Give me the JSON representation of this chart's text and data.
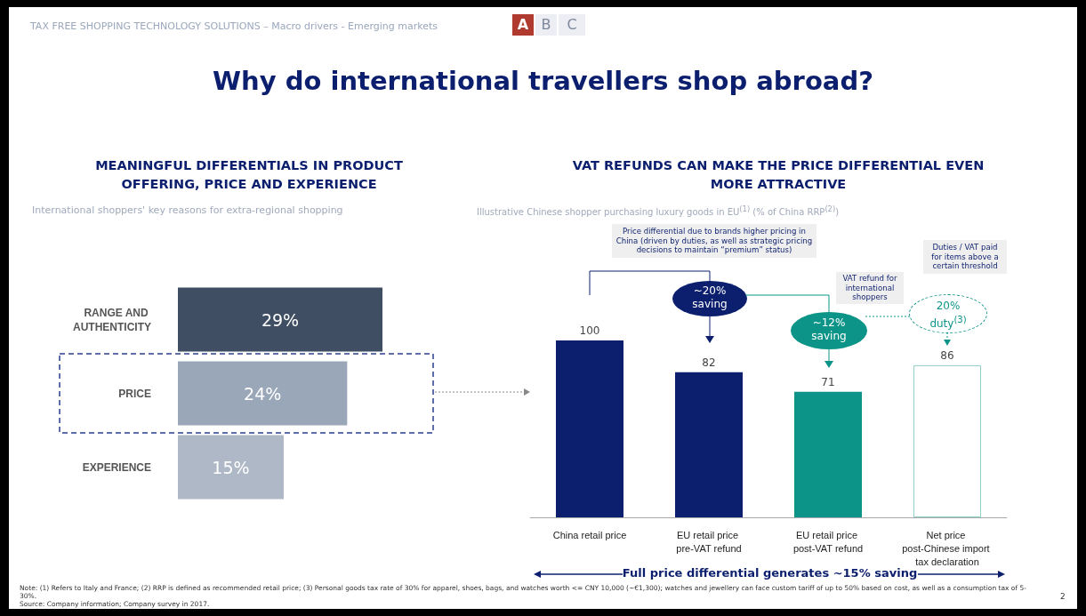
{
  "chart_data": [
    {
      "type": "bar",
      "orientation": "horizontal",
      "title": "MEANINGFUL DIFFERENTIALS IN PRODUCT OFFERING, PRICE AND EXPERIENCE",
      "subtitle": "International shoppers' key reasons for extra-regional shopping",
      "categories": [
        "RANGE AND AUTHENTICITY",
        "PRICE",
        "EXPERIENCE"
      ],
      "values": [
        29,
        24,
        15
      ],
      "colors": [
        "#3f4e63",
        "#9aa7b9",
        "#aeb8c7"
      ],
      "value_labels": [
        "29%",
        "24%",
        "15%"
      ],
      "annotations": [
        "TAX FREE SHOPPING TECHNOLOGY SOLUTIONS – Macro drivers - Emerging markets",
        "A",
        "B",
        "C",
        "Why do international travellers shop abroad?",
        "Note: (1) Refers to Italy and France; (2) RRP is defined as recommended retail price; (3) Personal goods tax rate of 30% for apparel, shoes, bags, and watches worth <= CNY 10,000 (~€1,300); watches and jewellery can face custom tariff of up to 50% based on cost, as well as a consumption tax of 5-30%.",
        "Source: Company information; Company survey in 2017.",
        "2"
      ]
    },
    {
      "type": "bar",
      "title": "VAT REFUNDS CAN MAKE THE PRICE DIFFERENTIAL EVEN MORE ATTRACTIVE",
      "subtitle": "Illustrative Chinese shopper purchasing luxury goods in EU$^{(1)}$ (% of China RRP$^{(2)}$)",
      "categories": [
        "China retail price",
        "EU retail price pre-VAT refund",
        "EU retail price post-VAT refund",
        "Net price post-Chinese import tax declaration"
      ],
      "values": [
        100,
        82,
        71,
        86
      ],
      "colors": [
        "#0c1f6e",
        "#0c1f6e",
        "#0d9488",
        "#ffffff"
      ],
      "data_labels": true,
      "annotations": [
        "Price differential due to brands higher pricing in China (driven by duties, as well as strategic pricing decisions to maintain “premium” status)",
        "~20% saving",
        "VAT refund for international shoppers",
        "~12% saving",
        "Duties / VAT paid for items above a certain threshold",
        "20% duty$^{(3)}$",
        "Full price differential generates ~15% saving"
      ]
    }
  ]
}
